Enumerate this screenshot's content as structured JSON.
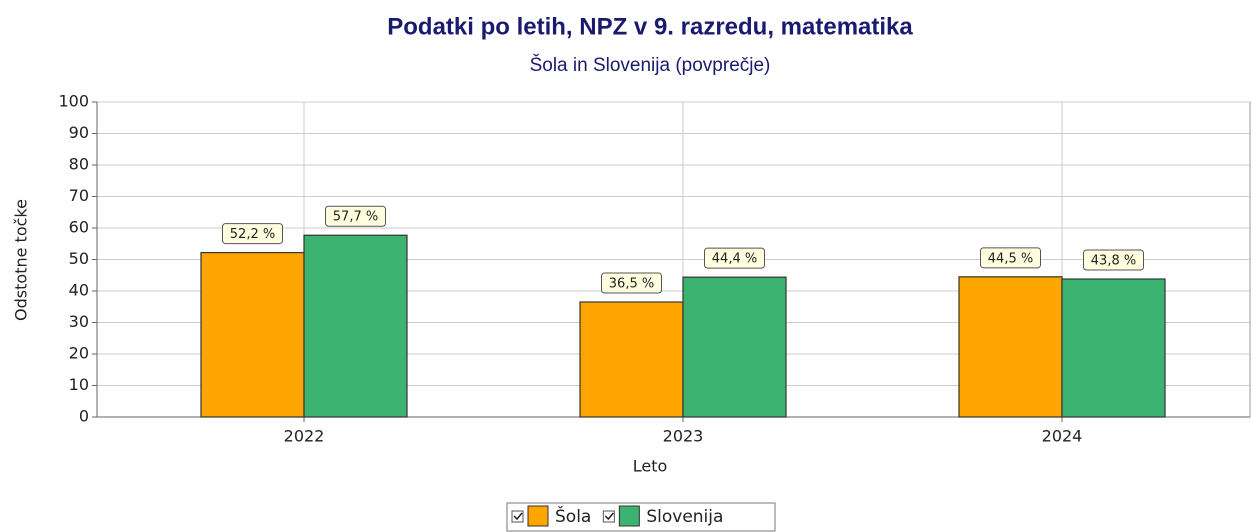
{
  "chart_data": {
    "type": "bar",
    "title": "Podatki po letih, NPZ v 9. razredu, matematika",
    "subtitle": "Šola in Slovenija (povprečje)",
    "x_label": "Leto",
    "y_label": "Odstotne točke",
    "categories": [
      "2022",
      "2023",
      "2024"
    ],
    "series": [
      {
        "name": "Šola",
        "color": "#ffa500",
        "values": [
          52.2,
          36.5,
          44.5
        ],
        "value_labels": [
          "52,2 %",
          "36,5 %",
          "44,5 %"
        ]
      },
      {
        "name": "Slovenija",
        "color": "#3cb371",
        "values": [
          57.7,
          44.4,
          43.8
        ],
        "value_labels": [
          "57,7 %",
          "44,4 %",
          "43,8 %"
        ]
      }
    ],
    "ylim": [
      0,
      100
    ],
    "yticks": [
      0,
      10,
      20,
      30,
      40,
      50,
      60,
      70,
      80,
      90,
      100
    ],
    "grid": true,
    "legend": "bottom"
  }
}
